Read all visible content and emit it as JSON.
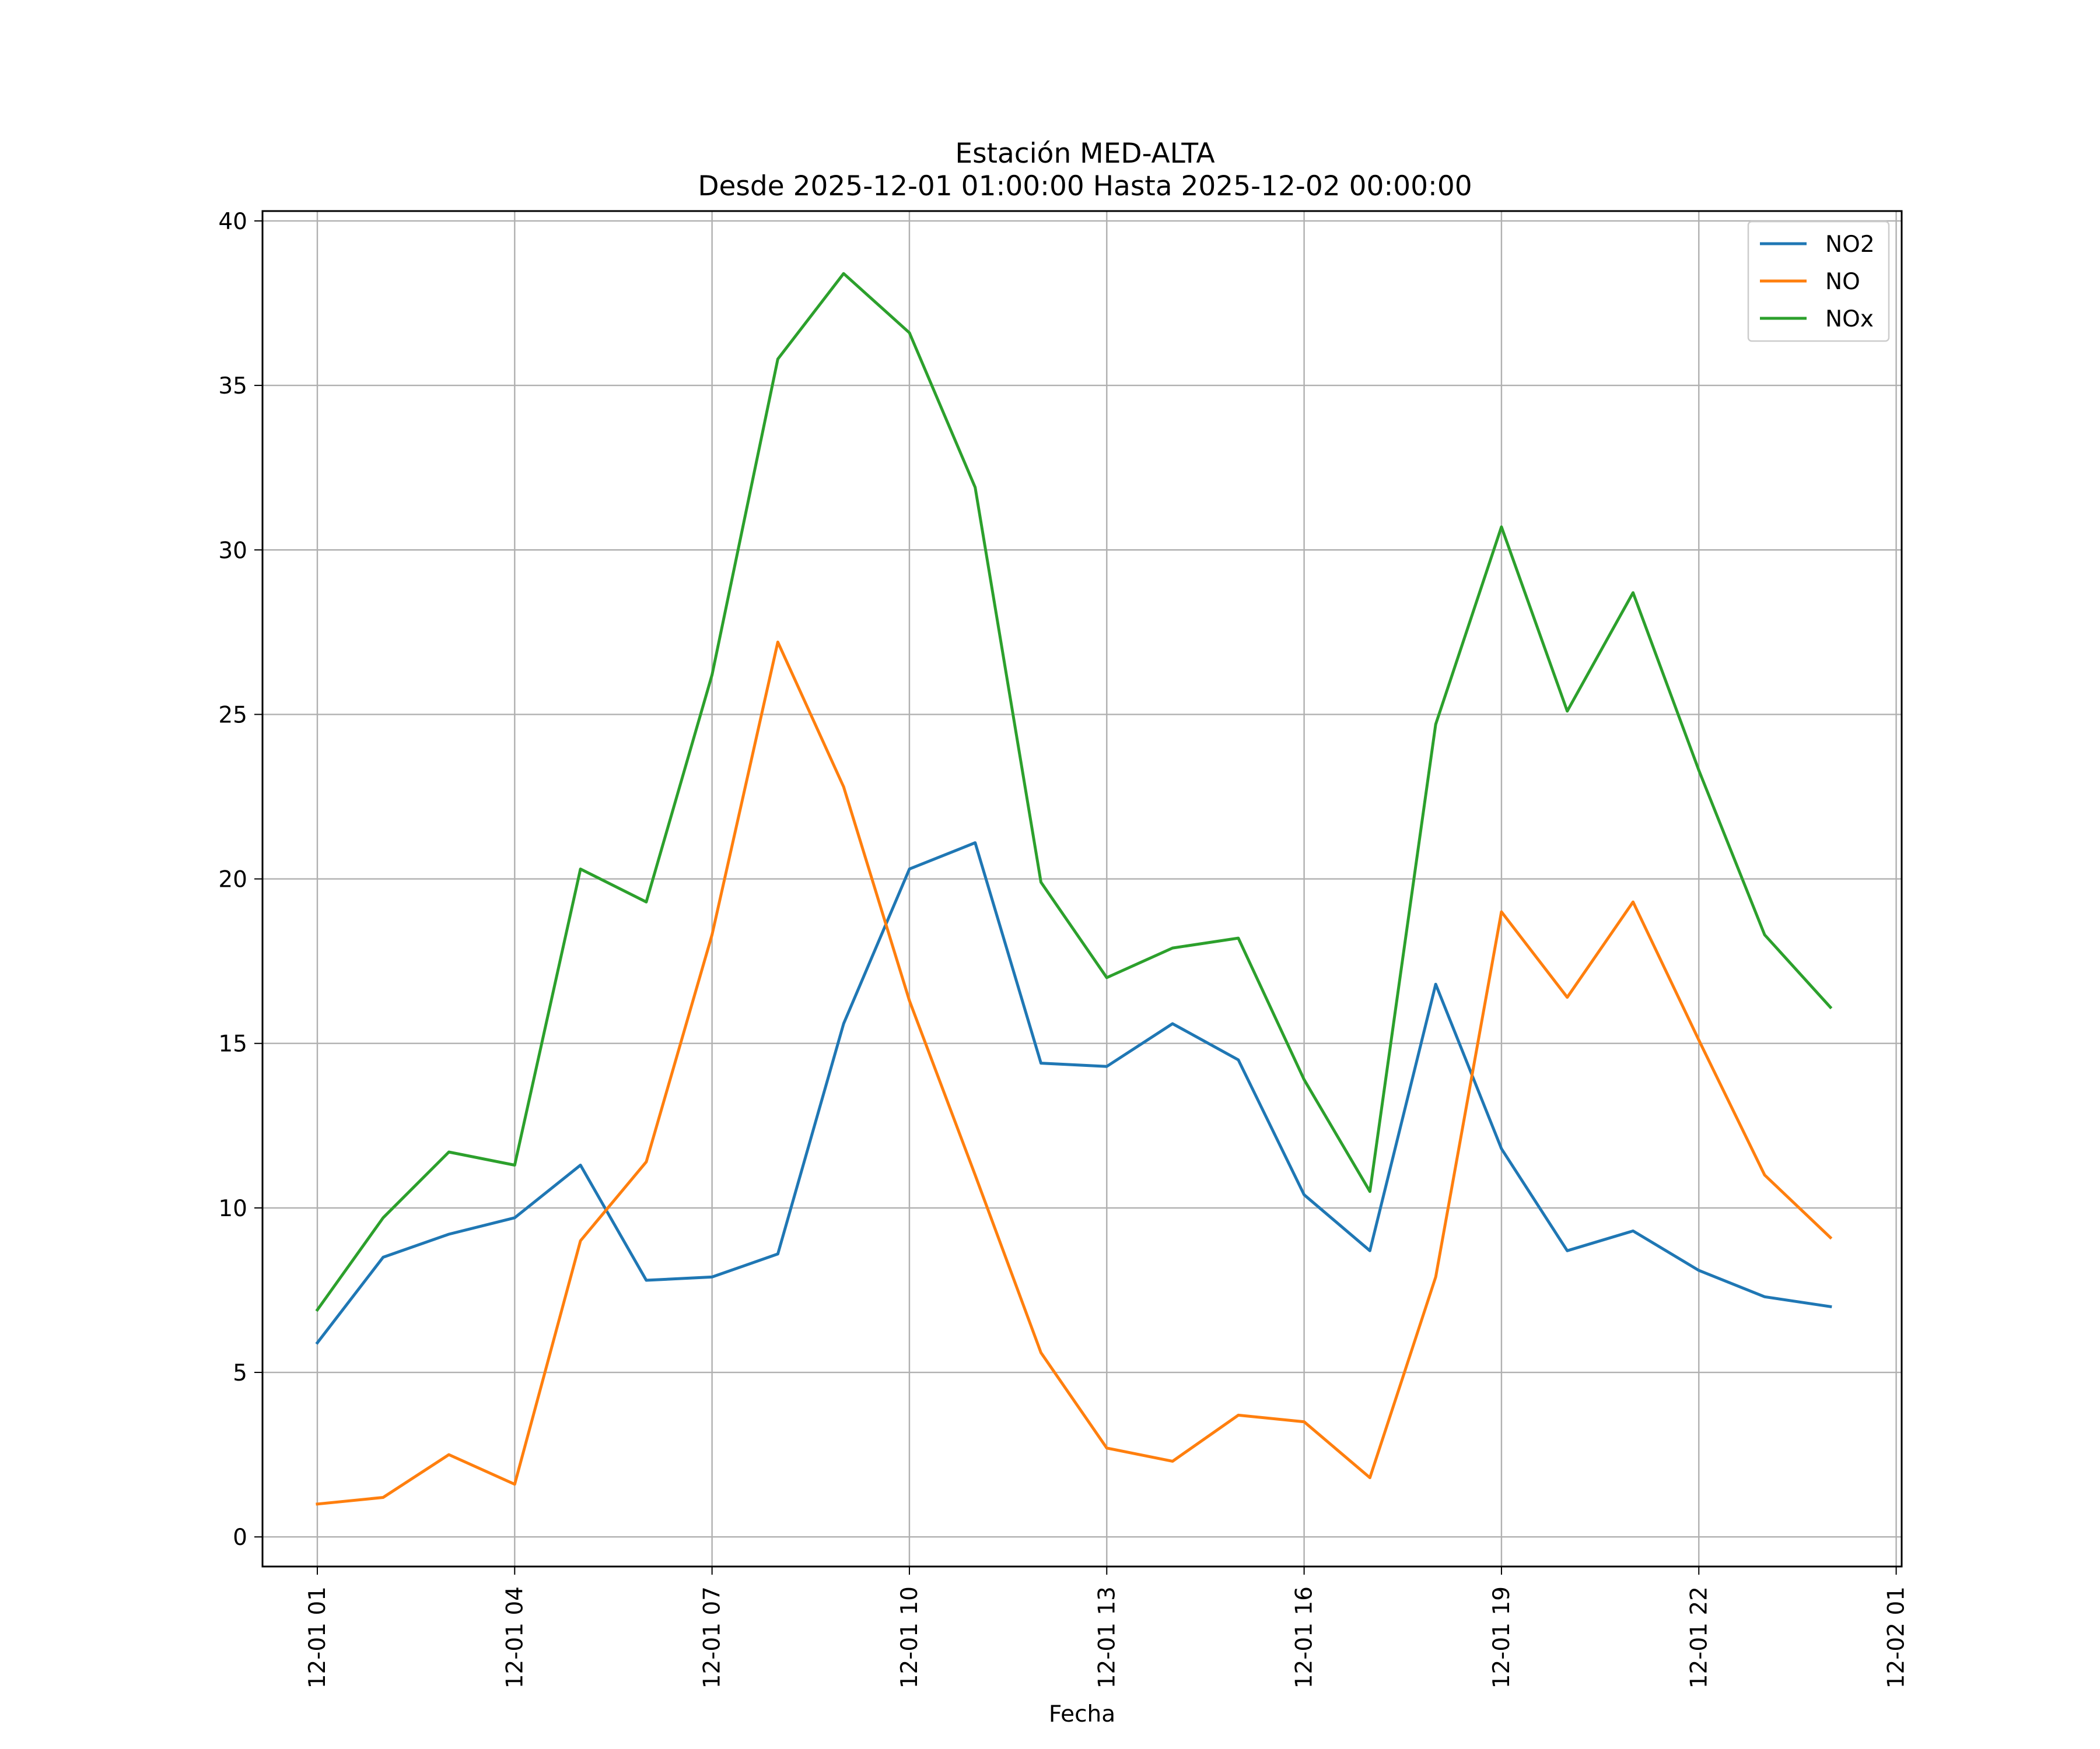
{
  "chart_data": {
    "type": "line",
    "title": "Estación MED-ALTA",
    "subtitle": "Desde 2025-12-01 01:00:00 Hasta 2025-12-02 00:00:00",
    "xlabel": "Fecha",
    "ylabel": "",
    "x": [
      "2025-12-01 01:00",
      "2025-12-01 02:00",
      "2025-12-01 03:00",
      "2025-12-01 04:00",
      "2025-12-01 05:00",
      "2025-12-01 06:00",
      "2025-12-01 07:00",
      "2025-12-01 08:00",
      "2025-12-01 09:00",
      "2025-12-01 10:00",
      "2025-12-01 11:00",
      "2025-12-01 12:00",
      "2025-12-01 13:00",
      "2025-12-01 14:00",
      "2025-12-01 15:00",
      "2025-12-01 16:00",
      "2025-12-01 17:00",
      "2025-12-01 18:00",
      "2025-12-01 19:00",
      "2025-12-01 20:00",
      "2025-12-01 21:00",
      "2025-12-01 22:00",
      "2025-12-01 23:00",
      "2025-12-02 00:00"
    ],
    "series": [
      {
        "name": "NO2",
        "color": "#1f77b4",
        "values": [
          5.9,
          8.5,
          9.2,
          9.7,
          11.3,
          7.8,
          7.9,
          8.6,
          15.6,
          20.3,
          21.1,
          14.4,
          14.3,
          15.6,
          14.5,
          10.4,
          8.7,
          16.8,
          11.8,
          8.7,
          9.3,
          8.1,
          7.3,
          7.0
        ]
      },
      {
        "name": "NO",
        "color": "#ff7f0e",
        "values": [
          1.0,
          1.2,
          2.5,
          1.6,
          9.0,
          11.4,
          18.3,
          27.2,
          22.8,
          16.3,
          11.0,
          5.6,
          2.7,
          2.3,
          3.7,
          3.5,
          1.8,
          7.9,
          19.0,
          16.4,
          19.3,
          15.1,
          11.0,
          9.1
        ]
      },
      {
        "name": "NOx",
        "color": "#2ca02c",
        "values": [
          6.9,
          9.7,
          11.7,
          11.3,
          20.3,
          19.3,
          26.2,
          35.8,
          38.4,
          36.6,
          31.9,
          19.9,
          17.0,
          17.9,
          18.2,
          13.9,
          10.5,
          24.7,
          30.7,
          25.1,
          28.7,
          23.3,
          18.3,
          16.1
        ]
      }
    ],
    "x_ticks": [
      "12-01 01",
      "12-01 04",
      "12-01 07",
      "12-01 10",
      "12-01 13",
      "12-01 16",
      "12-01 19",
      "12-01 22",
      "12-02 01"
    ],
    "y_ticks": [
      "0",
      "5",
      "10",
      "15",
      "20",
      "25",
      "30",
      "35",
      "40"
    ],
    "xlim": [
      "2025-12-01 00:10",
      "2025-12-02 01:05"
    ],
    "ylim": [
      -0.9,
      40.3
    ],
    "grid": true,
    "legend": "top-right"
  }
}
